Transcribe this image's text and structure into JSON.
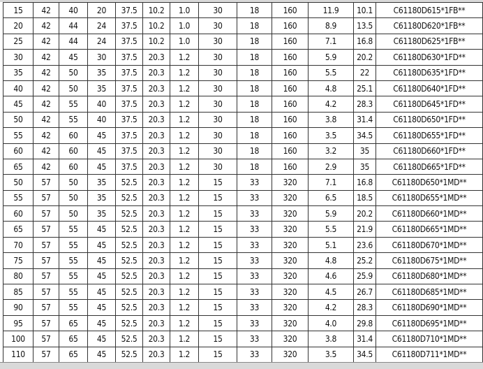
{
  "rows": [
    [
      "15",
      "42",
      "40",
      "20",
      "37.5",
      "10.2",
      "1.0",
      "30",
      "18",
      "160",
      "11.9",
      "10.1",
      "C61180D615*1FB**"
    ],
    [
      "20",
      "42",
      "44",
      "24",
      "37.5",
      "10.2",
      "1.0",
      "30",
      "18",
      "160",
      "8.9",
      "13.5",
      "C61180D620*1FB**"
    ],
    [
      "25",
      "42",
      "44",
      "24",
      "37.5",
      "10.2",
      "1.0",
      "30",
      "18",
      "160",
      "7.1",
      "16.8",
      "C61180D625*1FB**"
    ],
    [
      "30",
      "42",
      "45",
      "30",
      "37.5",
      "20.3",
      "1.2",
      "30",
      "18",
      "160",
      "5.9",
      "20.2",
      "C61180D630*1FD**"
    ],
    [
      "35",
      "42",
      "50",
      "35",
      "37.5",
      "20.3",
      "1.2",
      "30",
      "18",
      "160",
      "5.5",
      "22",
      "C61180D635*1FD**"
    ],
    [
      "40",
      "42",
      "50",
      "35",
      "37.5",
      "20.3",
      "1.2",
      "30",
      "18",
      "160",
      "4.8",
      "25.1",
      "C61180D640*1FD**"
    ],
    [
      "45",
      "42",
      "55",
      "40",
      "37.5",
      "20.3",
      "1.2",
      "30",
      "18",
      "160",
      "4.2",
      "28.3",
      "C61180D645*1FD**"
    ],
    [
      "50",
      "42",
      "55",
      "40",
      "37.5",
      "20.3",
      "1.2",
      "30",
      "18",
      "160",
      "3.8",
      "31.4",
      "C61180D650*1FD**"
    ],
    [
      "55",
      "42",
      "60",
      "45",
      "37.5",
      "20.3",
      "1.2",
      "30",
      "18",
      "160",
      "3.5",
      "34.5",
      "C61180D655*1FD**"
    ],
    [
      "60",
      "42",
      "60",
      "45",
      "37.5",
      "20.3",
      "1.2",
      "30",
      "18",
      "160",
      "3.2",
      "35",
      "C61180D660*1FD**"
    ],
    [
      "65",
      "42",
      "60",
      "45",
      "37.5",
      "20.3",
      "1.2",
      "30",
      "18",
      "160",
      "2.9",
      "35",
      "C61180D665*1FD**"
    ],
    [
      "50",
      "57",
      "50",
      "35",
      "52.5",
      "20.3",
      "1.2",
      "15",
      "33",
      "320",
      "7.1",
      "16.8",
      "C61180D650*1MD**"
    ],
    [
      "55",
      "57",
      "50",
      "35",
      "52.5",
      "20.3",
      "1.2",
      "15",
      "33",
      "320",
      "6.5",
      "18.5",
      "C61180D655*1MD**"
    ],
    [
      "60",
      "57",
      "50",
      "35",
      "52.5",
      "20.3",
      "1.2",
      "15",
      "33",
      "320",
      "5.9",
      "20.2",
      "C61180D660*1MD**"
    ],
    [
      "65",
      "57",
      "55",
      "45",
      "52.5",
      "20.3",
      "1.2",
      "15",
      "33",
      "320",
      "5.5",
      "21.9",
      "C61180D665*1MD**"
    ],
    [
      "70",
      "57",
      "55",
      "45",
      "52.5",
      "20.3",
      "1.2",
      "15",
      "33",
      "320",
      "5.1",
      "23.6",
      "C61180D670*1MD**"
    ],
    [
      "75",
      "57",
      "55",
      "45",
      "52.5",
      "20.3",
      "1.2",
      "15",
      "33",
      "320",
      "4.8",
      "25.2",
      "C61180D675*1MD**"
    ],
    [
      "80",
      "57",
      "55",
      "45",
      "52.5",
      "20.3",
      "1.2",
      "15",
      "33",
      "320",
      "4.6",
      "25.9",
      "C61180D680*1MD**"
    ],
    [
      "85",
      "57",
      "55",
      "45",
      "52.5",
      "20.3",
      "1.2",
      "15",
      "33",
      "320",
      "4.5",
      "26.7",
      "C61180D685*1MD**"
    ],
    [
      "90",
      "57",
      "55",
      "45",
      "52.5",
      "20.3",
      "1.2",
      "15",
      "33",
      "320",
      "4.2",
      "28.3",
      "C61180D690*1MD**"
    ],
    [
      "95",
      "57",
      "65",
      "45",
      "52.5",
      "20.3",
      "1.2",
      "15",
      "33",
      "320",
      "4.0",
      "29.8",
      "C61180D695*1MD**"
    ],
    [
      "100",
      "57",
      "65",
      "45",
      "52.5",
      "20.3",
      "1.2",
      "15",
      "33",
      "320",
      "3.8",
      "31.4",
      "C61180D710*1MD**"
    ],
    [
      "110",
      "57",
      "65",
      "45",
      "52.5",
      "20.3",
      "1.2",
      "15",
      "33",
      "320",
      "3.5",
      "34.5",
      "C61180D711*1MD**"
    ]
  ]
}
